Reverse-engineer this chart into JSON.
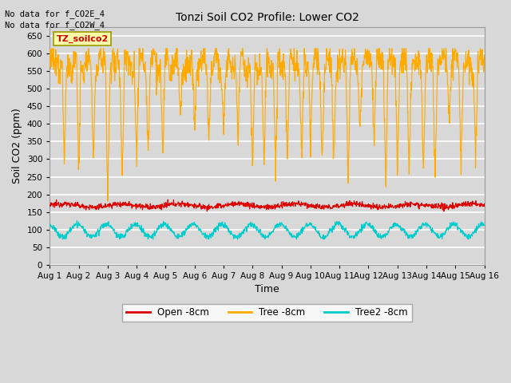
{
  "title": "Tonzi Soil CO2 Profile: Lower CO2",
  "xlabel": "Time",
  "ylabel": "Soil CO2 (ppm)",
  "ylim": [
    0,
    675
  ],
  "yticks": [
    0,
    50,
    100,
    150,
    200,
    250,
    300,
    350,
    400,
    450,
    500,
    550,
    600,
    650
  ],
  "background_color": "#d8d8d8",
  "plot_bg_color": "#d8d8d8",
  "grid_color": "#ffffff",
  "no_data_text1": "No data for f_CO2E_4",
  "no_data_text2": "No data for f_CO2W_4",
  "legend_box_text": "TZ_soilco2",
  "legend_box_color": "#ffffaa",
  "legend_box_edge": "#999900",
  "line_open_color": "#dd0000",
  "line_tree_color": "#ffaa00",
  "line_tree2_color": "#00cccc",
  "legend_open": "Open -8cm",
  "legend_tree": "Tree -8cm",
  "legend_tree2": "Tree2 -8cm",
  "n_points": 1440,
  "x_start": 0,
  "x_end": 15,
  "xtick_positions": [
    0,
    1,
    2,
    3,
    4,
    5,
    6,
    7,
    8,
    9,
    10,
    11,
    12,
    13,
    14,
    15
  ],
  "xtick_labels": [
    "Aug 1",
    "Aug 2",
    "Aug 3",
    "Aug 4",
    "Aug 5",
    "Aug 6",
    "Aug 7",
    "Aug 8",
    "Aug 9",
    "Aug 10",
    "Aug 11",
    "Aug 12",
    "Aug 13",
    "Aug 14",
    "Aug 15",
    "Aug 16"
  ]
}
